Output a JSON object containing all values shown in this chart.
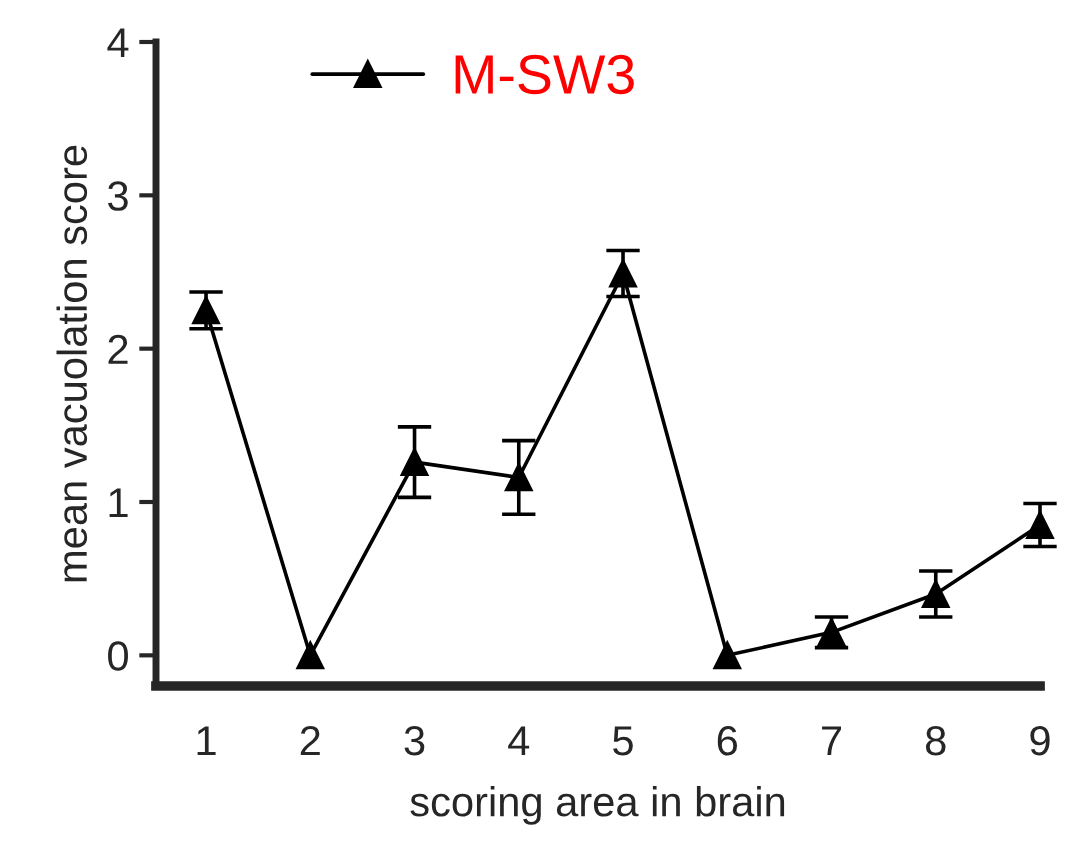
{
  "chart_data": {
    "type": "line",
    "xlabel": "scoring area in brain",
    "ylabel": "mean vacuolation score",
    "categories": [
      "1",
      "2",
      "3",
      "4",
      "5",
      "6",
      "7",
      "8",
      "9"
    ],
    "series": [
      {
        "name": "M-SW3",
        "color": "#000000",
        "values": [
          2.25,
          0,
          1.26,
          1.16,
          2.49,
          0,
          0.15,
          0.4,
          0.85
        ],
        "errors": [
          0.12,
          null,
          0.23,
          0.24,
          0.15,
          null,
          0.1,
          0.15,
          0.14
        ]
      }
    ],
    "ylim": [
      -0.2,
      4
    ],
    "yticks": [
      0,
      1,
      2,
      3,
      4
    ],
    "marker": "triangle",
    "line_style": "solid",
    "legend": "top",
    "grid": false
  }
}
